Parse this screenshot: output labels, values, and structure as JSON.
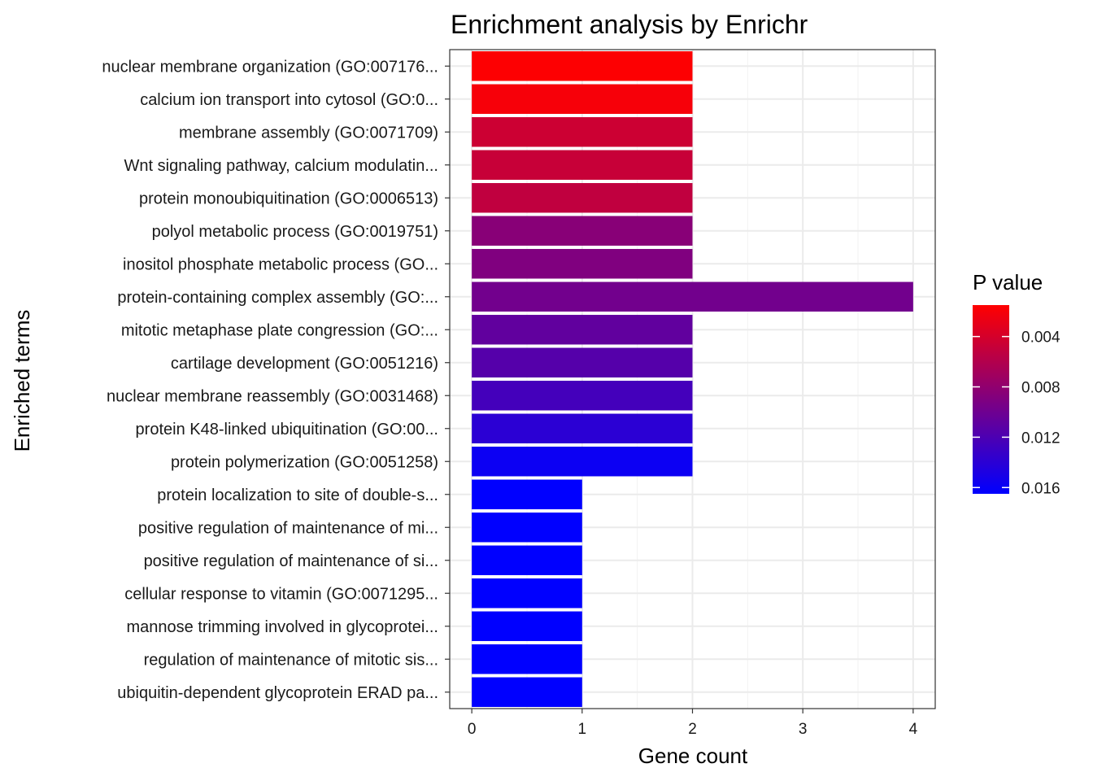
{
  "chart_data": {
    "type": "bar",
    "orientation": "horizontal",
    "title": "Enrichment analysis by Enrichr",
    "xlabel": "Gene count",
    "ylabel": "Enriched terms",
    "xlim": [
      -0.2,
      4.2
    ],
    "xticks": [
      0,
      1,
      2,
      3,
      4
    ],
    "grid": true,
    "categories": [
      "nuclear membrane organization (GO:007176...",
      "calcium ion transport into cytosol (GO:0...",
      "membrane assembly (GO:0071709)",
      "Wnt signaling pathway, calcium modulatin...",
      "protein monoubiquitination (GO:0006513)",
      "polyol metabolic process (GO:0019751)",
      "inositol phosphate metabolic process (GO...",
      "protein-containing complex assembly (GO:...",
      "mitotic metaphase plate congression (GO:...",
      "cartilage development (GO:0051216)",
      "nuclear membrane reassembly (GO:0031468)",
      "protein K48-linked ubiquitination (GO:00...",
      "protein polymerization (GO:0051258)",
      "protein localization to site of double-s...",
      "positive regulation of maintenance of mi...",
      "positive regulation of maintenance of si...",
      "cellular response to vitamin (GO:0071295...",
      "mannose trimming involved in glycoprotei...",
      "regulation of maintenance of mitotic sis...",
      "ubiquitin-dependent glycoprotein ERAD pa..."
    ],
    "values": [
      2,
      2,
      2,
      2,
      2,
      2,
      2,
      4,
      2,
      2,
      2,
      2,
      2,
      1,
      1,
      1,
      1,
      1,
      1,
      1
    ],
    "p_values": [
      0.0016,
      0.002,
      0.0045,
      0.0048,
      0.0052,
      0.0085,
      0.009,
      0.0098,
      0.0108,
      0.0115,
      0.0125,
      0.014,
      0.0158,
      0.0165,
      0.0165,
      0.0165,
      0.0165,
      0.0165,
      0.0165,
      0.0165
    ],
    "legend": {
      "title": "P value",
      "placement": "right",
      "range": [
        0.0015,
        0.0165
      ],
      "ticks": [
        0.004,
        0.008,
        0.012,
        0.016
      ],
      "tick_labels": [
        "0.004",
        "0.008",
        "0.012",
        "0.016"
      ],
      "low_color": "#ff0000",
      "high_color": "#0000ff"
    }
  }
}
